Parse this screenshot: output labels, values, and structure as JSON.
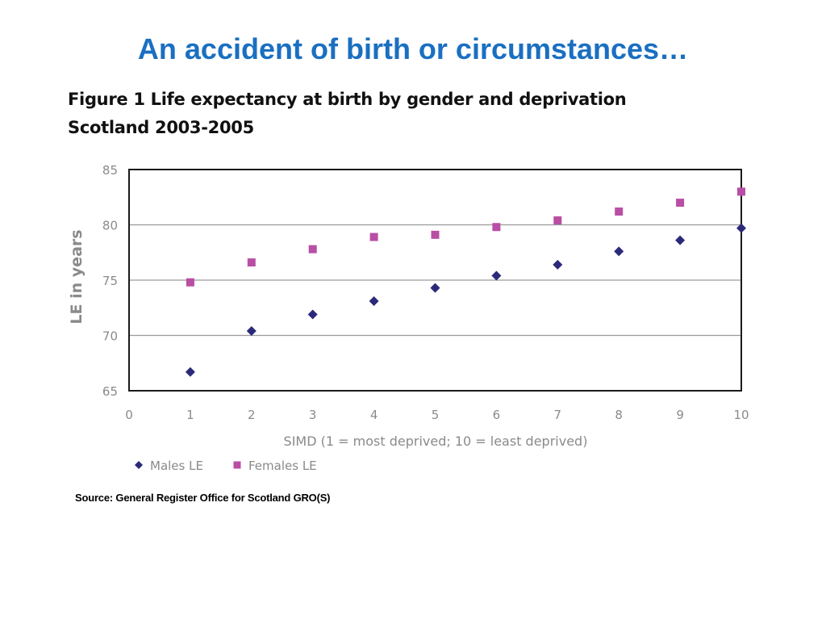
{
  "slide": {
    "title": "An accident of birth or circumstances…",
    "title_color": "#1a6fc1"
  },
  "figure": {
    "caption_line1": "Figure 1 Life expectancy at birth by gender and deprivation",
    "caption_line2": "Scotland 2003-2005",
    "source": "Source: General Register Office for Scotland GRO(S)"
  },
  "chart_data": {
    "type": "scatter",
    "xlabel": "SIMD (1 = most deprived; 10 = least deprived)",
    "ylabel": "LE in years",
    "xlim": [
      0,
      10
    ],
    "ylim": [
      65,
      85
    ],
    "x_ticks": [
      0,
      1,
      2,
      3,
      4,
      5,
      6,
      7,
      8,
      9,
      10
    ],
    "y_ticks": [
      65,
      70,
      75,
      80,
      85
    ],
    "grid": "horizontal",
    "legend_position": "bottom-left",
    "series": [
      {
        "name": "Males LE",
        "marker": "diamond",
        "color": "#2b2a7a",
        "x": [
          1,
          2,
          3,
          4,
          5,
          6,
          7,
          8,
          9,
          10
        ],
        "y": [
          66.7,
          70.4,
          71.9,
          73.1,
          74.3,
          75.4,
          76.4,
          77.6,
          78.6,
          79.7
        ]
      },
      {
        "name": "Females LE",
        "marker": "square",
        "color": "#b94ea5",
        "x": [
          1,
          2,
          3,
          4,
          5,
          6,
          7,
          8,
          9,
          10
        ],
        "y": [
          74.8,
          76.6,
          77.8,
          78.9,
          79.1,
          79.8,
          80.4,
          81.2,
          82.0,
          83.0
        ]
      }
    ]
  }
}
